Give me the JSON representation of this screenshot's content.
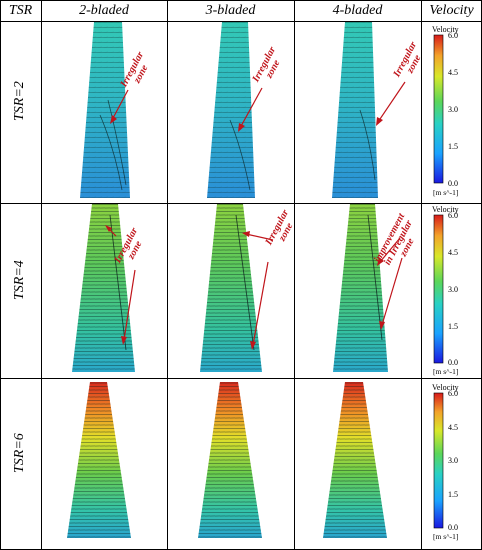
{
  "header": {
    "tsr": "TSR",
    "columns": [
      "2-bladed",
      "3-bladed",
      "4-bladed"
    ],
    "velocity": "Velocity"
  },
  "rows": [
    "TSR=2",
    "TSR=4",
    "TSR=6"
  ],
  "colorbar": {
    "title": "Velocity",
    "ticks": [
      "6.0",
      "4.5",
      "3.0",
      "1.5",
      "0.0"
    ],
    "units": "[m s^-1]",
    "colors": [
      "#1a18e0",
      "#1aa2ff",
      "#29d1c4",
      "#5bd65a",
      "#d8e82a",
      "#f3a32a",
      "#d81a1a"
    ]
  },
  "annotations": {
    "irregular_zone": [
      "Irregular",
      "zone"
    ],
    "improvement": [
      "improvement",
      "in Irregular",
      "zone"
    ]
  }
}
